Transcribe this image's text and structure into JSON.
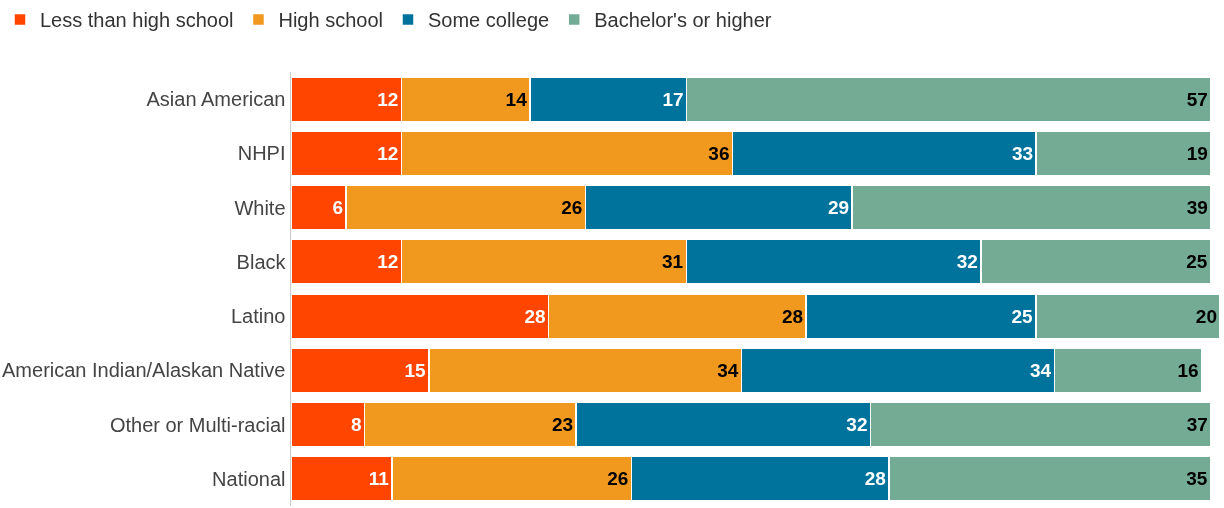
{
  "chart_data": {
    "type": "bar",
    "orientation": "horizontal",
    "stacked": true,
    "data_labels": true,
    "legend": "top left",
    "grid": false,
    "tick_labels": "y",
    "xlim": [
      0,
      101
    ],
    "categories": [
      "Asian American",
      "NHPI",
      "White",
      "Black",
      "Latino",
      "American Indian/Alaskan Native",
      "Other or Multi-racial",
      "National"
    ],
    "series": [
      {
        "name": "Less than high school",
        "color": "#ff4500",
        "values": [
          12,
          12,
          6,
          12,
          28,
          15,
          8,
          11
        ]
      },
      {
        "name": "High school",
        "color": "#f0991e",
        "values": [
          14,
          36,
          26,
          31,
          28,
          34,
          23,
          26
        ]
      },
      {
        "name": "Some college",
        "color": "#00739c",
        "values": [
          17,
          33,
          29,
          32,
          25,
          34,
          32,
          28
        ]
      },
      {
        "name": "Bachelor's or higher",
        "color": "#73ab94",
        "values": [
          57,
          19,
          39,
          25,
          20,
          16,
          37,
          35
        ]
      }
    ]
  }
}
